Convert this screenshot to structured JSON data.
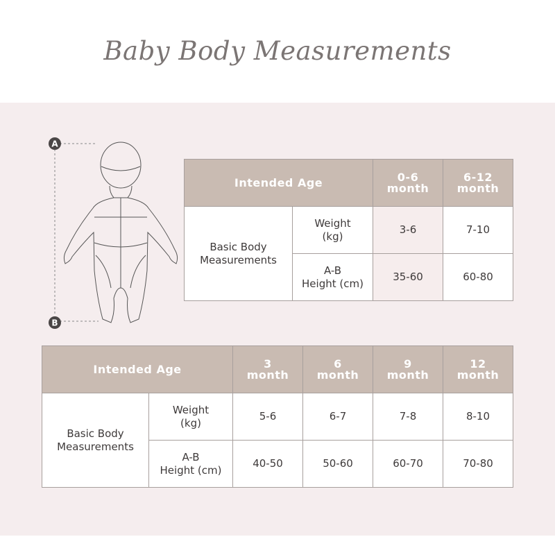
{
  "title": "Baby Body Measurements",
  "figure": {
    "marker_top": "A",
    "marker_bottom": "B"
  },
  "table1": {
    "header_label": "Intended Age",
    "ages": [
      {
        "num": "0-6",
        "unit": "month"
      },
      {
        "num": "6-12",
        "unit": "month"
      }
    ],
    "group_label": "Basic Body Measurements",
    "rows": [
      {
        "label1": "Weight",
        "label2": "(kg)",
        "values": [
          "3-6",
          "7-10"
        ]
      },
      {
        "label1": "A-B",
        "label2": "Height (cm)",
        "values": [
          "35-60",
          "60-80"
        ]
      }
    ]
  },
  "table2": {
    "header_label": "Intended Age",
    "ages": [
      {
        "num": "3",
        "unit": "month"
      },
      {
        "num": "6",
        "unit": "month"
      },
      {
        "num": "9",
        "unit": "month"
      },
      {
        "num": "12",
        "unit": "month"
      }
    ],
    "group_label": "Basic Body Measurements",
    "rows": [
      {
        "label1": "Weight",
        "label2": "(kg)",
        "values": [
          "5-6",
          "6-7",
          "7-8",
          "8-10"
        ]
      },
      {
        "label1": "A-B",
        "label2": "Height (cm)",
        "values": [
          "40-50",
          "50-60",
          "60-70",
          "70-80"
        ]
      }
    ]
  },
  "colors": {
    "header": "#c9bbb2",
    "band": "#f5edee",
    "marker": "#4a4646"
  }
}
